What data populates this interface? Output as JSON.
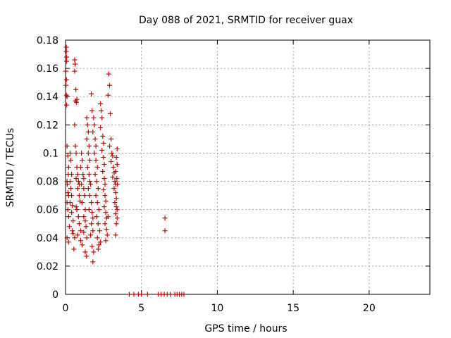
{
  "chart_data": {
    "type": "scatter",
    "title": "Day 088 of 2021, SRMTID for receiver guax",
    "xlabel": "GPS time / hours",
    "ylabel": "SRMTID / TECUs",
    "xlim": [
      0,
      24
    ],
    "ylim": [
      0,
      0.18
    ],
    "xticks": [
      0,
      5,
      10,
      15,
      20
    ],
    "xtick_labels": [
      "0",
      "5",
      "10",
      "15",
      "20"
    ],
    "yticks": [
      0,
      0.02,
      0.04,
      0.06,
      0.08,
      0.1,
      0.12,
      0.14,
      0.16,
      0.18
    ],
    "ytick_labels": [
      "0",
      "0.02",
      "0.04",
      "0.06",
      "0.08",
      "0.1",
      "0.12",
      "0.14",
      "0.16",
      "0.18"
    ],
    "grid": true,
    "marker": "+",
    "color": "#cc0000",
    "series": [
      {
        "points": [
          [
            0.05,
            0.175
          ],
          [
            0.05,
            0.172
          ],
          [
            0.07,
            0.168
          ],
          [
            0.07,
            0.165
          ],
          [
            0.02,
            0.158
          ],
          [
            0.06,
            0.152
          ],
          [
            0.03,
            0.148
          ],
          [
            0.06,
            0.141
          ],
          [
            0.1,
            0.14
          ],
          [
            0.07,
            0.134
          ],
          [
            0.1,
            0.105
          ],
          [
            0.15,
            0.098
          ],
          [
            0.2,
            0.09
          ],
          [
            0.18,
            0.085
          ],
          [
            0.1,
            0.08
          ],
          [
            0.12,
            0.078
          ],
          [
            0.16,
            0.072
          ],
          [
            0.2,
            0.07
          ],
          [
            0.1,
            0.065
          ],
          [
            0.15,
            0.06
          ],
          [
            0.2,
            0.055
          ],
          [
            0.25,
            0.048
          ],
          [
            0.1,
            0.04
          ],
          [
            0.2,
            0.037
          ],
          [
            0.3,
            0.1
          ],
          [
            0.35,
            0.095
          ],
          [
            0.4,
            0.085
          ],
          [
            0.3,
            0.08
          ],
          [
            0.35,
            0.075
          ],
          [
            0.4,
            0.07
          ],
          [
            0.3,
            0.065
          ],
          [
            0.45,
            0.063
          ],
          [
            0.4,
            0.058
          ],
          [
            0.5,
            0.052
          ],
          [
            0.45,
            0.045
          ],
          [
            0.5,
            0.043
          ],
          [
            0.6,
            0.04
          ],
          [
            0.55,
            0.032
          ],
          [
            0.6,
            0.166
          ],
          [
            0.63,
            0.163
          ],
          [
            0.6,
            0.158
          ],
          [
            0.68,
            0.145
          ],
          [
            0.65,
            0.137
          ],
          [
            0.72,
            0.136
          ],
          [
            0.75,
            0.138
          ],
          [
            0.6,
            0.12
          ],
          [
            0.65,
            0.105
          ],
          [
            0.7,
            0.1
          ],
          [
            0.75,
            0.09
          ],
          [
            0.8,
            0.085
          ],
          [
            0.7,
            0.082
          ],
          [
            0.85,
            0.08
          ],
          [
            0.9,
            0.078
          ],
          [
            0.8,
            0.075
          ],
          [
            0.9,
            0.07
          ],
          [
            0.95,
            0.066
          ],
          [
            0.7,
            0.062
          ],
          [
            0.75,
            0.06
          ],
          [
            0.85,
            0.055
          ],
          [
            0.9,
            0.05
          ],
          [
            1.0,
            0.045
          ],
          [
            0.8,
            0.042
          ],
          [
            1.0,
            0.038
          ],
          [
            1.1,
            0.035
          ],
          [
            1.05,
            0.1
          ],
          [
            1.1,
            0.095
          ],
          [
            1.0,
            0.09
          ],
          [
            1.15,
            0.085
          ],
          [
            1.2,
            0.082
          ],
          [
            1.05,
            0.078
          ],
          [
            1.2,
            0.075
          ],
          [
            1.25,
            0.07
          ],
          [
            1.1,
            0.065
          ],
          [
            1.3,
            0.06
          ],
          [
            1.2,
            0.055
          ],
          [
            1.3,
            0.052
          ],
          [
            1.35,
            0.048
          ],
          [
            1.2,
            0.044
          ],
          [
            1.4,
            0.04
          ],
          [
            1.3,
            0.03
          ],
          [
            1.38,
            0.027
          ],
          [
            1.4,
            0.125
          ],
          [
            1.45,
            0.12
          ],
          [
            1.5,
            0.115
          ],
          [
            1.4,
            0.11
          ],
          [
            1.55,
            0.105
          ],
          [
            1.5,
            0.1
          ],
          [
            1.6,
            0.095
          ],
          [
            1.45,
            0.09
          ],
          [
            1.55,
            0.085
          ],
          [
            1.6,
            0.08
          ],
          [
            1.65,
            0.078
          ],
          [
            1.5,
            0.075
          ],
          [
            1.6,
            0.07
          ],
          [
            1.7,
            0.065
          ],
          [
            1.55,
            0.06
          ],
          [
            1.75,
            0.058
          ],
          [
            1.8,
            0.054
          ],
          [
            1.7,
            0.05
          ],
          [
            1.8,
            0.045
          ],
          [
            1.65,
            0.042
          ],
          [
            1.75,
            0.034
          ],
          [
            1.85,
            0.03
          ],
          [
            1.8,
            0.023
          ],
          [
            1.7,
            0.142
          ],
          [
            1.75,
            0.13
          ],
          [
            1.85,
            0.125
          ],
          [
            1.9,
            0.12
          ],
          [
            1.8,
            0.115
          ],
          [
            1.95,
            0.11
          ],
          [
            2.0,
            0.105
          ],
          [
            1.9,
            0.1
          ],
          [
            2.0,
            0.095
          ],
          [
            2.1,
            0.09
          ],
          [
            1.95,
            0.085
          ],
          [
            2.05,
            0.08
          ],
          [
            2.15,
            0.075
          ],
          [
            2.0,
            0.07
          ],
          [
            2.1,
            0.065
          ],
          [
            2.2,
            0.06
          ],
          [
            2.05,
            0.055
          ],
          [
            2.15,
            0.05
          ],
          [
            2.25,
            0.045
          ],
          [
            2.1,
            0.04
          ],
          [
            2.2,
            0.035
          ],
          [
            2.3,
            0.037
          ],
          [
            2.15,
            0.032
          ],
          [
            2.3,
            0.135
          ],
          [
            2.35,
            0.13
          ],
          [
            2.4,
            0.125
          ],
          [
            2.3,
            0.118
          ],
          [
            2.45,
            0.112
          ],
          [
            2.5,
            0.107
          ],
          [
            2.4,
            0.102
          ],
          [
            2.5,
            0.097
          ],
          [
            2.55,
            0.092
          ],
          [
            2.45,
            0.087
          ],
          [
            2.55,
            0.082
          ],
          [
            2.6,
            0.078
          ],
          [
            2.5,
            0.074
          ],
          [
            2.6,
            0.07
          ],
          [
            2.65,
            0.066
          ],
          [
            2.55,
            0.062
          ],
          [
            2.65,
            0.058
          ],
          [
            2.7,
            0.054
          ],
          [
            2.6,
            0.05
          ],
          [
            2.7,
            0.046
          ],
          [
            2.75,
            0.042
          ],
          [
            2.65,
            0.038
          ],
          [
            2.8,
            0.055
          ],
          [
            2.85,
            0.156
          ],
          [
            2.9,
            0.148
          ],
          [
            2.8,
            0.141
          ],
          [
            2.95,
            0.128
          ],
          [
            3.0,
            0.11
          ],
          [
            2.9,
            0.105
          ],
          [
            3.05,
            0.1
          ],
          [
            3.1,
            0.098
          ],
          [
            3.0,
            0.094
          ],
          [
            3.15,
            0.09
          ],
          [
            3.2,
            0.086
          ],
          [
            3.1,
            0.083
          ],
          [
            3.25,
            0.08
          ],
          [
            3.3,
            0.078
          ],
          [
            3.2,
            0.075
          ],
          [
            3.3,
            0.072
          ],
          [
            3.35,
            0.068
          ],
          [
            3.25,
            0.065
          ],
          [
            3.35,
            0.062
          ],
          [
            3.4,
            0.06
          ],
          [
            3.3,
            0.057
          ],
          [
            3.4,
            0.054
          ],
          [
            3.35,
            0.05
          ],
          [
            3.3,
            0.042
          ],
          [
            3.4,
            0.103
          ],
          [
            3.35,
            0.097
          ],
          [
            3.4,
            0.092
          ],
          [
            3.3,
            0.087
          ],
          [
            3.38,
            0.082
          ],
          [
            3.42,
            0.078
          ],
          [
            6.55,
            0.054
          ],
          [
            6.55,
            0.045
          ],
          [
            4.2,
            0.0
          ],
          [
            4.5,
            0.0
          ],
          [
            4.8,
            0.0
          ],
          [
            5.0,
            0.0
          ],
          [
            5.4,
            0.0
          ],
          [
            6.1,
            0.0
          ],
          [
            6.3,
            0.0
          ],
          [
            6.5,
            0.0
          ],
          [
            6.7,
            0.0
          ],
          [
            6.9,
            0.0
          ],
          [
            7.2,
            0.0
          ],
          [
            7.35,
            0.0
          ],
          [
            7.5,
            0.0
          ],
          [
            7.65,
            0.0
          ],
          [
            7.8,
            0.0
          ]
        ]
      }
    ]
  }
}
